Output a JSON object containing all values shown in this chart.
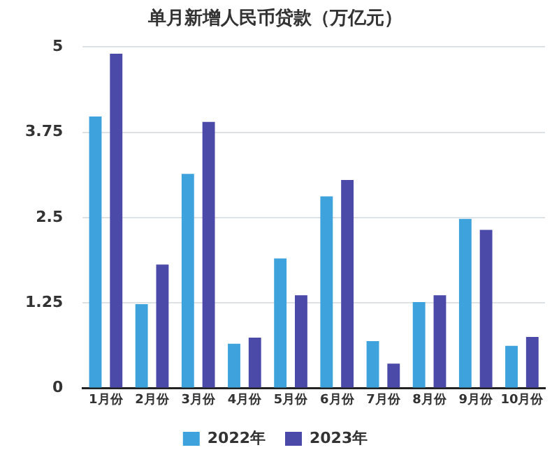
{
  "chart_data": {
    "type": "bar",
    "title": "单月新增人民币贷款（万亿元）",
    "categories": [
      "1月份",
      "2月份",
      "3月份",
      "4月份",
      "5月份",
      "6月份",
      "7月份",
      "8月份",
      "9月份",
      "10月份"
    ],
    "series": [
      {
        "name": "2022年",
        "color": "#3ea3dc",
        "values": [
          3.98,
          1.23,
          3.14,
          0.65,
          1.9,
          2.81,
          0.69,
          1.26,
          2.48,
          0.62
        ]
      },
      {
        "name": "2023年",
        "color": "#4b4aa8",
        "values": [
          4.9,
          1.81,
          3.9,
          0.74,
          1.36,
          3.05,
          0.36,
          1.36,
          2.32,
          0.75
        ]
      }
    ],
    "ylim": [
      0,
      5
    ],
    "yticks": [
      0,
      1.25,
      2.5,
      3.75,
      5
    ],
    "grid": "y",
    "legend": "bottom"
  }
}
